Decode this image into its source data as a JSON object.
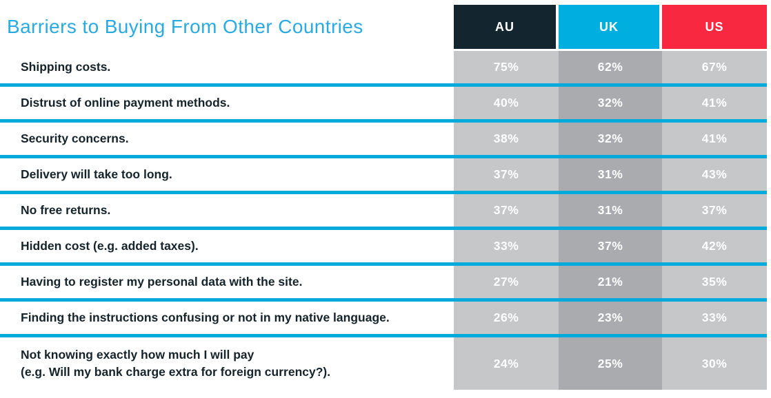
{
  "title": "Barriers to Buying From Other Countries",
  "columns": [
    {
      "label": "AU",
      "color": "#13252F"
    },
    {
      "label": "UK",
      "color": "#00AEE0"
    },
    {
      "label": "US",
      "color": "#F82840"
    }
  ],
  "rows": [
    {
      "label": "Shipping costs.",
      "values": [
        "75%",
        "62%",
        "67%"
      ]
    },
    {
      "label": "Distrust of online payment methods.",
      "values": [
        "40%",
        "32%",
        "41%"
      ]
    },
    {
      "label": "Security concerns.",
      "values": [
        "38%",
        "32%",
        "41%"
      ]
    },
    {
      "label": "Delivery will take too long.",
      "values": [
        "37%",
        "31%",
        "43%"
      ]
    },
    {
      "label": "No free returns.",
      "values": [
        "37%",
        "31%",
        "37%"
      ]
    },
    {
      "label": "Hidden cost (e.g. added taxes).",
      "values": [
        "33%",
        "37%",
        "42%"
      ]
    },
    {
      "label": "Having to register my personal data with the site.",
      "values": [
        "27%",
        "21%",
        "35%"
      ]
    },
    {
      "label": "Finding the instructions confusing or not in my native language.",
      "values": [
        "26%",
        "23%",
        "33%"
      ]
    },
    {
      "label": "Not knowing exactly how much I will pay\n(e.g. Will my bank charge extra for foreign currency?).",
      "values": [
        "24%",
        "25%",
        "30%"
      ]
    }
  ],
  "colors": {
    "title": "#29ABE2",
    "separator": "#00AADB",
    "cell_light": "#C5C7C9",
    "cell_dark": "#A9ABAE",
    "label_text": "#15232B",
    "value_text": "#FFFFFF",
    "header_au": "#13252F",
    "header_uk": "#00AEE0",
    "header_us": "#F82840"
  },
  "chart_data": {
    "type": "table",
    "title": "Barriers to Buying From Other Countries",
    "categories": [
      "Shipping costs.",
      "Distrust of online payment methods.",
      "Security concerns.",
      "Delivery will take too long.",
      "No free returns.",
      "Hidden cost (e.g. added taxes).",
      "Having to register my personal data with the site.",
      "Finding the instructions confusing or not in my native language.",
      "Not knowing exactly how much I will pay (e.g. Will my bank charge extra for foreign currency?)."
    ],
    "series": [
      {
        "name": "AU",
        "values": [
          75,
          40,
          38,
          37,
          37,
          33,
          27,
          26,
          24
        ]
      },
      {
        "name": "UK",
        "values": [
          62,
          32,
          32,
          31,
          31,
          37,
          21,
          23,
          25
        ]
      },
      {
        "name": "US",
        "values": [
          67,
          41,
          41,
          43,
          37,
          42,
          35,
          33,
          30
        ]
      }
    ],
    "unit": "%",
    "legend_position": "top",
    "grid": false
  }
}
